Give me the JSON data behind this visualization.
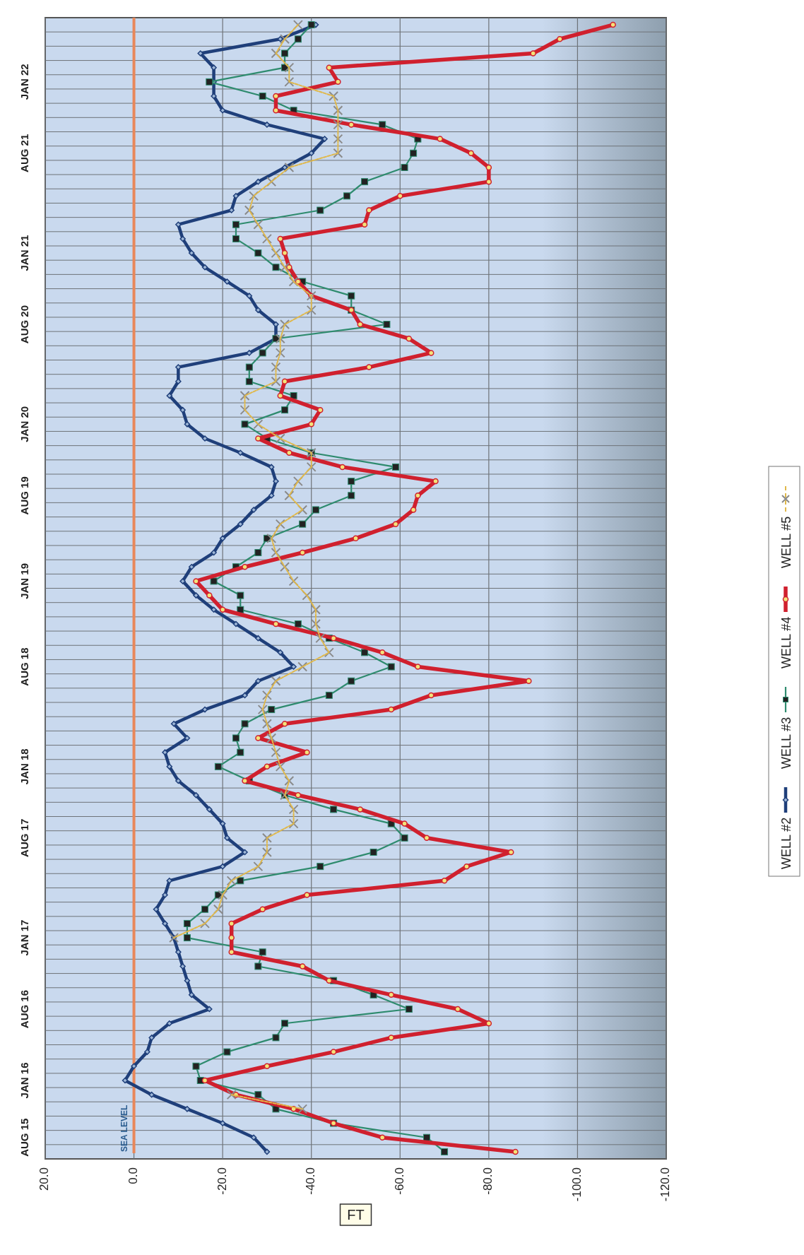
{
  "chart_data": {
    "type": "line",
    "orientation": "horizontal",
    "xlabel": "FT",
    "xlim": [
      20,
      -120
    ],
    "xticks": [
      {
        "value": 20,
        "label": "20.0"
      },
      {
        "value": 0,
        "label": "0.0"
      },
      {
        "value": -20,
        "label": "-20.0"
      },
      {
        "value": -40,
        "label": "-40.0"
      },
      {
        "value": -60,
        "label": "-60.0"
      },
      {
        "value": -80,
        "label": "-80.0"
      },
      {
        "value": -100,
        "label": "-100.0"
      },
      {
        "value": -120,
        "label": "-120.0"
      }
    ],
    "categories": [
      null,
      null,
      null,
      null,
      "JAN 22",
      null,
      null,
      null,
      null,
      "AUG 21",
      null,
      null,
      null,
      null,
      null,
      null,
      "JAN 21",
      null,
      null,
      null,
      null,
      "AUG 20",
      null,
      null,
      null,
      null,
      null,
      null,
      "JAN 20",
      null,
      null,
      null,
      null,
      "AUG 19",
      null,
      null,
      null,
      null,
      null,
      "JAN 19",
      null,
      null,
      null,
      null,
      null,
      "AUG 18",
      null,
      null,
      null,
      null,
      null,
      null,
      "JAN 18",
      null,
      null,
      null,
      null,
      "AUG 17",
      null,
      null,
      null,
      null,
      null,
      null,
      "JAN 17",
      null,
      null,
      null,
      null,
      "AUG 16",
      null,
      null,
      null,
      null,
      "JAN 16",
      null,
      null,
      null,
      "AUG 15",
      null
    ],
    "grid": true,
    "legend": "bottom",
    "ref_lines": [
      {
        "axis": "x",
        "value": 0,
        "label": "SEA LEVEL",
        "color": "#e8875a"
      }
    ],
    "series": [
      {
        "name": "WELL #2",
        "color": "#1f3f7a",
        "marker": "diamond",
        "line_style": "solid",
        "values": [
          -41,
          -33,
          -15,
          -18,
          -18,
          -18,
          -20,
          -30,
          -43,
          -40,
          -34,
          -28,
          -23,
          -22,
          -10,
          -11,
          -13,
          -16,
          -21,
          -26,
          -28,
          -32,
          -32,
          -26,
          -10,
          -10,
          -8,
          -11,
          -12,
          -16,
          -24,
          -31,
          -32,
          -31,
          -27,
          -24,
          -20,
          -18,
          -13,
          -11,
          -14,
          -18,
          -23,
          -28,
          -33,
          -36,
          -28,
          -25,
          -16,
          -9,
          -12,
          -7,
          -8,
          -10,
          -14,
          -17,
          -20,
          -21,
          -25,
          -20,
          -8,
          -7,
          -5,
          -7,
          -9,
          -10,
          -11,
          -12,
          -13,
          -17,
          -8,
          -4,
          -3,
          0,
          2,
          -4,
          -12,
          -20,
          -27,
          -30
        ]
      },
      {
        "name": "WELL #3",
        "color": "#2e8b6e",
        "marker": "square",
        "line_style": "solid",
        "values": [
          -40,
          -37,
          -34,
          -34,
          -17,
          -29,
          -36,
          -56,
          -64,
          -63,
          -61,
          -52,
          -48,
          -42,
          -23,
          -23,
          -28,
          -32,
          -38,
          -49,
          -49,
          -57,
          -32,
          -29,
          -26,
          -26,
          -36,
          -34,
          -25,
          -30,
          -40,
          -59,
          -49,
          -49,
          -41,
          -38,
          -30,
          -28,
          -23,
          -18,
          -24,
          -24,
          -37,
          -44,
          -52,
          -58,
          -49,
          -44,
          -31,
          -25,
          -23,
          -24,
          -19,
          -26,
          -34,
          -45,
          -58,
          -61,
          -54,
          -42,
          -24,
          -19,
          -16,
          -12,
          -12,
          -29,
          -28,
          -45,
          -54,
          -62,
          -34,
          -32,
          -21,
          -14,
          -15,
          -28,
          -32,
          -45,
          -66,
          -70
        ]
      },
      {
        "name": "WELL #4",
        "color": "#d0202e",
        "marker": "circle",
        "line_style": "solid",
        "values": [
          -108,
          -96,
          -90,
          -44,
          -46,
          -32,
          -32,
          -49,
          -69,
          -76,
          -80,
          -80,
          -60,
          -53,
          -52,
          -33,
          -34,
          -35,
          -37,
          -40,
          -49,
          -51,
          -62,
          -67,
          -53,
          -34,
          -33,
          -42,
          -40,
          -28,
          -35,
          -47,
          -68,
          -64,
          -63,
          -59,
          -50,
          -38,
          -25,
          -14,
          -17,
          -20,
          -32,
          -45,
          -56,
          -64,
          -89,
          -67,
          -58,
          -34,
          -28,
          -39,
          -30,
          -25,
          -37,
          -51,
          -61,
          -66,
          -85,
          -75,
          -70,
          -39,
          -29,
          -22,
          -22,
          -22,
          -38,
          -44,
          -58,
          -73,
          -80,
          -58,
          -45,
          -30,
          -16,
          -23,
          -36,
          -45,
          -56,
          -86
        ]
      },
      {
        "name": "WELL #5",
        "color": "#e0b84a",
        "marker": "cross",
        "line_style": "dashed",
        "values": [
          -37,
          -34,
          -32,
          -35,
          -35,
          -45,
          -46,
          -46,
          -46,
          -46,
          -35,
          -31,
          -27,
          -26,
          -28,
          -30,
          -32,
          -34,
          -36,
          -40,
          -40,
          -34,
          -33,
          -33,
          -32,
          -32,
          -25,
          -25,
          -28,
          -33,
          -40,
          -40,
          -37,
          -35,
          -38,
          -33,
          -31,
          -32,
          -34,
          -36,
          -39,
          -41,
          -41,
          -42,
          -44,
          -38,
          -32,
          -30,
          -29,
          -30,
          -31,
          -32,
          -33,
          -35,
          -34,
          -36,
          -36,
          -30,
          -30,
          -28,
          -22,
          -20,
          -19,
          -16,
          -9,
          null,
          null,
          null,
          null,
          null,
          null,
          null,
          null,
          null,
          null,
          -22,
          -38,
          null,
          null,
          null
        ]
      }
    ]
  }
}
